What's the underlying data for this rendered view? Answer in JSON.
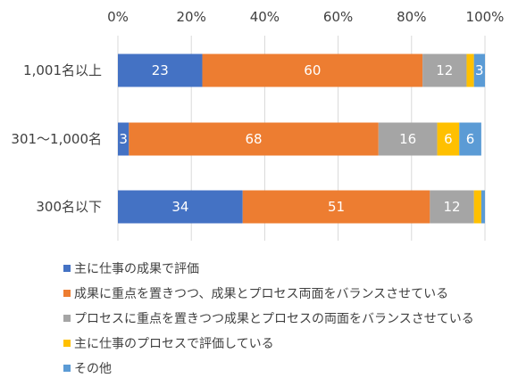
{
  "chart_data": {
    "type": "bar",
    "orientation": "horizontal",
    "stacked": "percent",
    "xlim": [
      0,
      100
    ],
    "x_ticks": [
      "0%",
      "20%",
      "40%",
      "60%",
      "80%",
      "100%"
    ],
    "categories": [
      "1,001名以上",
      "301～1,000名",
      "300名以下"
    ],
    "series": [
      {
        "name": "主に仕事の成果で評価",
        "color": "#4472c4",
        "values": [
          23,
          3,
          34
        ],
        "labels": [
          "23",
          "3",
          "34"
        ],
        "label_color": "#ffffff"
      },
      {
        "name": "成果に重点を置きつつ、成果とプロセス両面をバランスさせている",
        "color": "#ed7d31",
        "values": [
          60,
          68,
          51
        ],
        "labels": [
          "60",
          "68",
          "51"
        ],
        "label_color": "#ffffff"
      },
      {
        "name": "プロセスに重点を置きつつ成果とプロセスの両面をバランスさせている",
        "color": "#a5a5a5",
        "values": [
          12,
          16,
          12
        ],
        "labels": [
          "12",
          "16",
          "12"
        ],
        "label_color": "#ffffff"
      },
      {
        "name": "主に仕事のプロセスで評価している",
        "color": "#ffc000",
        "values": [
          2,
          6,
          2
        ],
        "labels": [
          "",
          "6",
          ""
        ],
        "label_color": "#404040"
      },
      {
        "name": "その他",
        "color": "#5b9bd5",
        "values": [
          3,
          6,
          1
        ],
        "labels": [
          "3",
          "6",
          ""
        ],
        "label_color": "#ffffff"
      }
    ],
    "grid": true,
    "gridline_color": "#d9d9d9",
    "legend_position": "bottom"
  }
}
